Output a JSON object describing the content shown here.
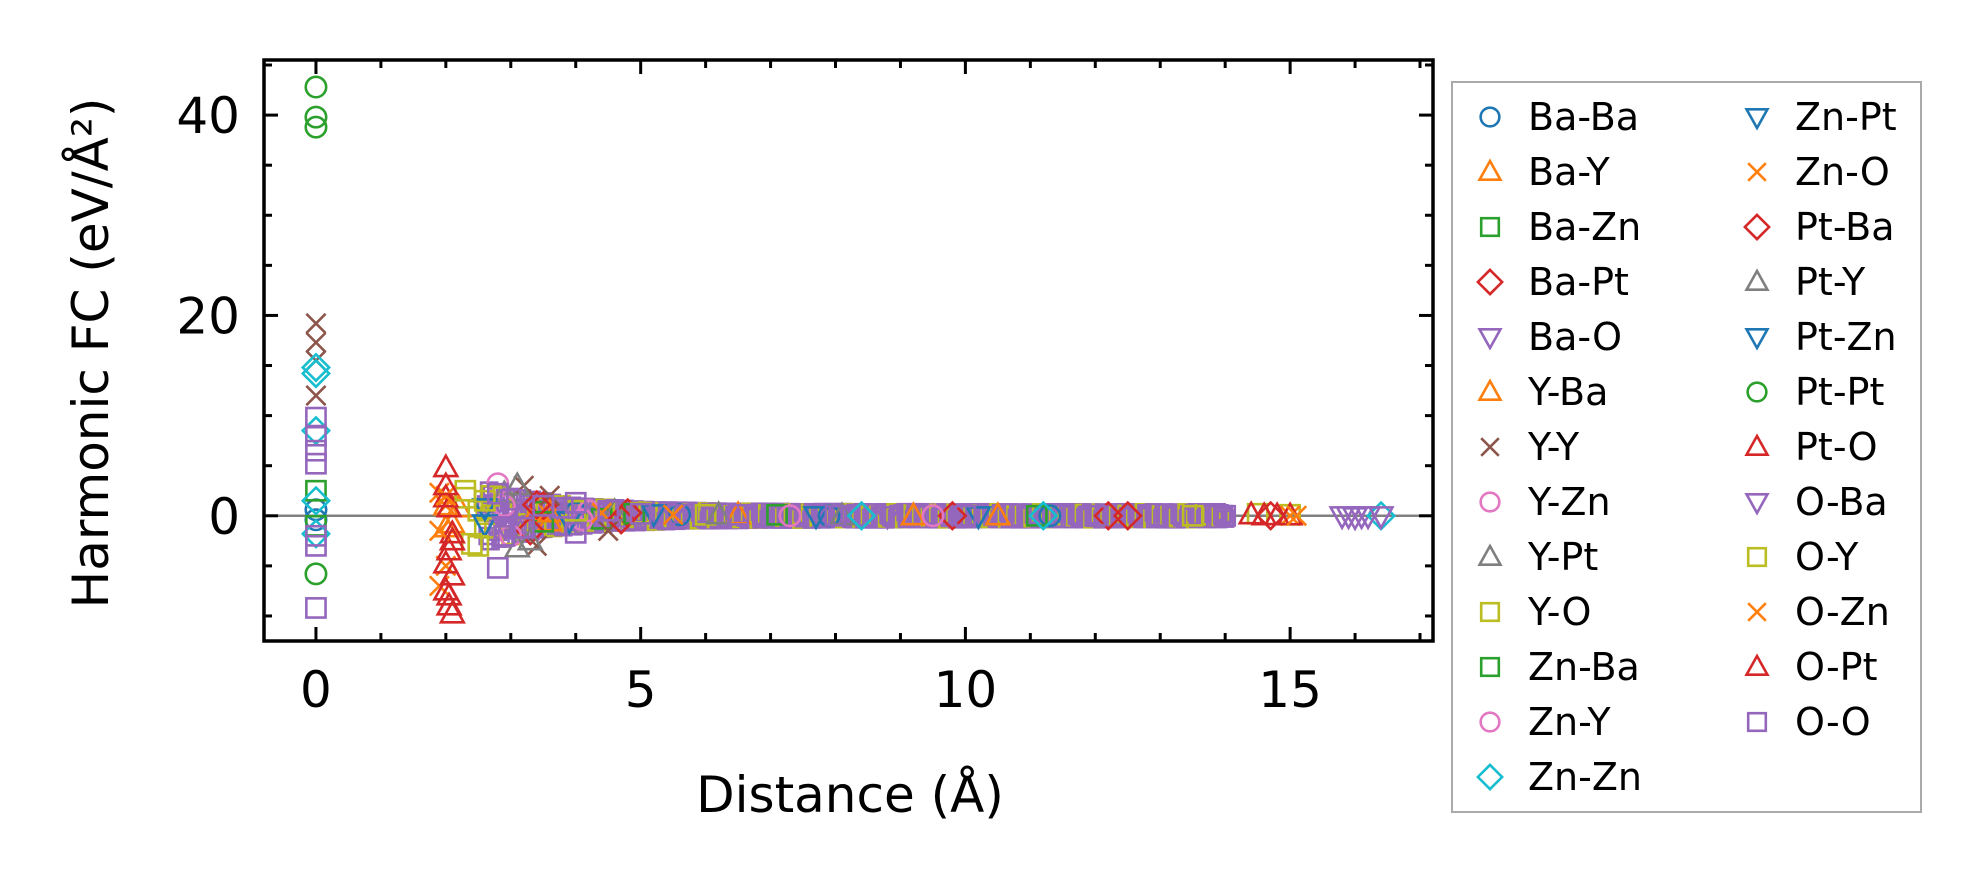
{
  "chart_data": {
    "type": "scatter",
    "title": "",
    "xlabel": "Distance (Å)",
    "ylabel": "Harmonic FC (eV/Å²)",
    "xlim": [
      -0.8,
      17.2
    ],
    "ylim": [
      -12.5,
      45.5
    ],
    "xticks": [
      0,
      5,
      10,
      15
    ],
    "yticks": [
      0,
      20,
      40
    ],
    "zero_line": true,
    "legend_position": "outside-right",
    "legend_columns": 2,
    "series": [
      {
        "name": "Ba-Ba",
        "marker": "circle",
        "color": "#1f77b4",
        "points": [
          [
            0,
            0.6
          ],
          [
            0,
            -0.4
          ],
          [
            4.0,
            0.3
          ],
          [
            5.6,
            0.1
          ],
          [
            7.9,
            0
          ],
          [
            11.3,
            0
          ]
        ]
      },
      {
        "name": "Ba-Y",
        "marker": "triangle-up",
        "color": "#ff7f0e",
        "points": [
          [
            2.0,
            1.0
          ],
          [
            2.1,
            -0.8
          ],
          [
            3.4,
            0.5
          ],
          [
            3.6,
            -0.6
          ],
          [
            6.5,
            0.1
          ],
          [
            9.2,
            0
          ]
        ]
      },
      {
        "name": "Ba-Zn",
        "marker": "square",
        "color": "#2ca02c",
        "points": [
          [
            0,
            2.5
          ],
          [
            0,
            -1.0
          ],
          [
            3.5,
            0.4
          ],
          [
            4.4,
            -0.3
          ],
          [
            7.1,
            0.1
          ]
        ]
      },
      {
        "name": "Ba-Pt",
        "marker": "diamond",
        "color": "#d62728",
        "points": [
          [
            3.3,
            -1.5
          ],
          [
            3.5,
            1.0
          ],
          [
            4.8,
            0.3
          ],
          [
            9.8,
            0
          ],
          [
            12.5,
            0
          ]
        ]
      },
      {
        "name": "Ba-O",
        "marker": "triangle-down",
        "color": "#9467bd",
        "points": [
          [
            2.8,
            1.2
          ],
          [
            3.0,
            -1.0
          ],
          [
            5.5,
            0.2
          ],
          [
            8.8,
            0
          ],
          [
            15.8,
            0
          ],
          [
            16.1,
            0
          ]
        ]
      },
      {
        "name": "Y-Ba",
        "marker": "triangle-up",
        "color": "#ff7f0e",
        "points": [
          [
            2.0,
            -1.2
          ],
          [
            2.2,
            0.8
          ],
          [
            3.6,
            0.3
          ],
          [
            10.5,
            0
          ]
        ]
      },
      {
        "name": "Y-Y",
        "marker": "x",
        "color": "#8c564b",
        "points": [
          [
            0,
            19.2
          ],
          [
            0,
            17.3
          ],
          [
            0,
            15.5
          ],
          [
            0,
            12
          ],
          [
            3.2,
            3.0
          ],
          [
            3.4,
            -3.0
          ],
          [
            3.6,
            2.0
          ],
          [
            4.5,
            -1.5
          ]
        ]
      },
      {
        "name": "Y-Zn",
        "marker": "circle",
        "color": "#e377c2",
        "points": [
          [
            2.8,
            3.2
          ],
          [
            3.0,
            -2.0
          ],
          [
            4.2,
            0.5
          ],
          [
            7.3,
            0
          ]
        ]
      },
      {
        "name": "Y-Pt",
        "marker": "triangle-up",
        "color": "#7f7f7f",
        "points": [
          [
            2.9,
            2.2
          ],
          [
            3.1,
            -3.2
          ],
          [
            4.6,
            0.4
          ],
          [
            8.1,
            0
          ]
        ]
      },
      {
        "name": "Y-O",
        "marker": "square",
        "color": "#bcbd22",
        "points": [
          [
            2.3,
            1.8
          ],
          [
            2.4,
            -2.8
          ],
          [
            2.5,
            0.5
          ],
          [
            2.6,
            -1.2
          ],
          [
            2.7,
            2.0
          ],
          [
            5.0,
            0.3
          ],
          [
            6.0,
            0.1
          ],
          [
            14.5,
            0.2
          ],
          [
            15.0,
            0.1
          ]
        ]
      },
      {
        "name": "Zn-Ba",
        "marker": "square",
        "color": "#2ca02c",
        "points": [
          [
            3.5,
            -0.6
          ],
          [
            4.9,
            0.2
          ],
          [
            11.1,
            0
          ]
        ]
      },
      {
        "name": "Zn-Y",
        "marker": "circle",
        "color": "#e377c2",
        "points": [
          [
            2.9,
            1.0
          ],
          [
            4.1,
            -0.4
          ],
          [
            9.5,
            0
          ]
        ]
      },
      {
        "name": "Zn-Zn",
        "marker": "diamond",
        "color": "#17becf",
        "points": [
          [
            0,
            14.8
          ],
          [
            0,
            14.2
          ],
          [
            0,
            8.5
          ],
          [
            0,
            1.5
          ],
          [
            0,
            -1.8
          ],
          [
            8.4,
            0
          ],
          [
            11.2,
            0
          ],
          [
            16.4,
            0
          ]
        ]
      },
      {
        "name": "Zn-Pt",
        "marker": "triangle-down",
        "color": "#1f77b4",
        "points": [
          [
            2.6,
            0.8
          ],
          [
            3.9,
            -0.5
          ],
          [
            7.7,
            0
          ]
        ]
      },
      {
        "name": "Zn-O",
        "marker": "x",
        "color": "#ff7f0e",
        "points": [
          [
            1.9,
            2.3
          ],
          [
            1.9,
            -7.0
          ],
          [
            2.0,
            -5.0
          ],
          [
            2.0,
            1.0
          ],
          [
            4.4,
            0.3
          ],
          [
            15.0,
            0
          ]
        ]
      },
      {
        "name": "Pt-Ba",
        "marker": "diamond",
        "color": "#d62728",
        "points": [
          [
            3.4,
            1.1
          ],
          [
            4.7,
            -0.4
          ],
          [
            12.2,
            0
          ],
          [
            14.7,
            0
          ]
        ]
      },
      {
        "name": "Pt-Y",
        "marker": "triangle-up",
        "color": "#7f7f7f",
        "points": [
          [
            3.1,
            3.0
          ],
          [
            3.3,
            -2.5
          ],
          [
            6.2,
            0.1
          ]
        ]
      },
      {
        "name": "Pt-Zn",
        "marker": "triangle-down",
        "color": "#1f77b4",
        "points": [
          [
            2.6,
            -0.8
          ],
          [
            5.2,
            0.2
          ],
          [
            10.2,
            0
          ]
        ]
      },
      {
        "name": "Pt-Pt",
        "marker": "circle",
        "color": "#2ca02c",
        "points": [
          [
            0,
            42.8
          ],
          [
            0,
            39.8
          ],
          [
            0,
            38.8
          ],
          [
            0,
            -5.8
          ]
        ]
      },
      {
        "name": "Pt-O",
        "marker": "triangle-up",
        "color": "#d62728",
        "points": [
          [
            2.0,
            4.8
          ],
          [
            2.0,
            1.8
          ],
          [
            2.05,
            0.8
          ],
          [
            2.1,
            -1.8
          ],
          [
            2.05,
            -3.5
          ],
          [
            2.0,
            -4.8
          ],
          [
            2.1,
            -6.0
          ],
          [
            2.0,
            -7.5
          ],
          [
            2.05,
            -9.0
          ],
          [
            2.1,
            -9.8
          ],
          [
            14.4,
            0.1
          ],
          [
            14.8,
            0
          ],
          [
            15.0,
            0
          ]
        ]
      },
      {
        "name": "O-Ba",
        "marker": "triangle-down",
        "color": "#9467bd",
        "points": [
          [
            2.9,
            -1.0
          ],
          [
            15.9,
            0
          ],
          [
            16.0,
            -0.1
          ],
          [
            16.2,
            0
          ],
          [
            16.4,
            0
          ]
        ]
      },
      {
        "name": "O-Y",
        "marker": "square",
        "color": "#bcbd22",
        "points": [
          [
            2.3,
            2.5
          ],
          [
            2.5,
            -3.0
          ],
          [
            2.6,
            1.5
          ],
          [
            4.0,
            0.5
          ],
          [
            13.5,
            0
          ]
        ]
      },
      {
        "name": "O-Zn",
        "marker": "x",
        "color": "#ff7f0e",
        "points": [
          [
            1.9,
            -1.5
          ],
          [
            2.0,
            2.0
          ],
          [
            5.5,
            0.1
          ],
          [
            15.1,
            0
          ]
        ]
      },
      {
        "name": "O-Pt",
        "marker": "triangle-up",
        "color": "#d62728",
        "points": [
          [
            2.0,
            3.0
          ],
          [
            2.1,
            -2.5
          ],
          [
            2.05,
            -8.0
          ],
          [
            14.6,
            0
          ]
        ]
      },
      {
        "name": "O-O",
        "marker": "square",
        "color": "#9467bd",
        "points": [
          [
            0,
            9.8
          ],
          [
            0,
            8
          ],
          [
            0,
            6.5
          ],
          [
            0,
            5.2
          ],
          [
            0,
            -2
          ],
          [
            0,
            -3
          ],
          [
            0,
            -9.2
          ],
          [
            2.8,
            -5.2
          ],
          [
            2.8,
            2.2
          ],
          [
            2.9,
            -2.0
          ],
          [
            3.0,
            1.6
          ],
          [
            3.2,
            -1.2
          ],
          [
            3.5,
            1.0
          ],
          [
            3.8,
            0.8
          ],
          [
            4.0,
            1.3
          ],
          [
            4.0,
            -1.7
          ],
          [
            4.5,
            0.5
          ],
          [
            5.0,
            0.2
          ],
          [
            6.5,
            0.1
          ],
          [
            8.0,
            0
          ],
          [
            10.0,
            0
          ],
          [
            12.0,
            0
          ],
          [
            14.0,
            0
          ]
        ]
      }
    ],
    "dense_band": {
      "x": [
        2.6,
        14.0
      ],
      "color": "#9467bd"
    }
  }
}
